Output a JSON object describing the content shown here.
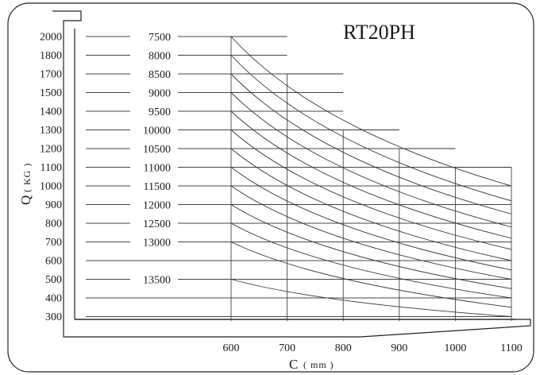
{
  "chart_data": {
    "type": "line",
    "title": "RT20PH",
    "xlabel": "C",
    "xunit": "( mm )",
    "ylabel": "Q",
    "yunit": "( KG )",
    "y_ticks": [
      "2000",
      "1800",
      "1700",
      "1500",
      "1400",
      "1300",
      "1200",
      "1100",
      "1000",
      "900",
      "800",
      "700",
      "600",
      "500",
      "400",
      "300"
    ],
    "x_ticks": [
      "600",
      "700",
      "800",
      "900",
      "1000",
      "1100"
    ],
    "lift_heights": [
      {
        "label": "7500",
        "capacity": 2000
      },
      {
        "label": "8000",
        "capacity": 1800
      },
      {
        "label": "8500",
        "capacity": 1700
      },
      {
        "label": "9000",
        "capacity": 1500
      },
      {
        "label": "9500",
        "capacity": 1400
      },
      {
        "label": "10000",
        "capacity": 1300
      },
      {
        "label": "10500",
        "capacity": 1200
      },
      {
        "label": "11000",
        "capacity": 1100
      },
      {
        "label": "11500",
        "capacity": 1000
      },
      {
        "label": "12000",
        "capacity": 900
      },
      {
        "label": "12500",
        "capacity": 800
      },
      {
        "label": "13000",
        "capacity": 700
      },
      {
        "label": "13500",
        "capacity": 500
      }
    ],
    "step_outline": [
      {
        "x_from": 600,
        "x_to": 700,
        "q": 2000
      },
      {
        "x_from": 700,
        "x_to": 800,
        "q": 1700
      },
      {
        "x_from": 800,
        "x_to": 900,
        "q": 1300
      },
      {
        "x_from": 900,
        "x_to": 1000,
        "q": 1200
      },
      {
        "x_from": 1000,
        "x_to": 1100,
        "q": 1100
      }
    ],
    "curves": [
      {
        "q600": 2000,
        "q1100": 1000
      },
      {
        "q600": 1800,
        "q1100": 920
      },
      {
        "q600": 1700,
        "q1100": 850
      },
      {
        "q600": 1500,
        "q1100": 780
      },
      {
        "q600": 1400,
        "q1100": 720
      },
      {
        "q600": 1300,
        "q1100": 660
      },
      {
        "q600": 1200,
        "q1100": 600
      },
      {
        "q600": 1100,
        "q1100": 550
      },
      {
        "q600": 1000,
        "q1100": 500
      },
      {
        "q600": 900,
        "q1100": 450
      },
      {
        "q600": 800,
        "q1100": 400
      },
      {
        "q600": 700,
        "q1100": 350
      },
      {
        "q600": 500,
        "q1100": 300
      }
    ],
    "grid": true,
    "legend": "none"
  }
}
